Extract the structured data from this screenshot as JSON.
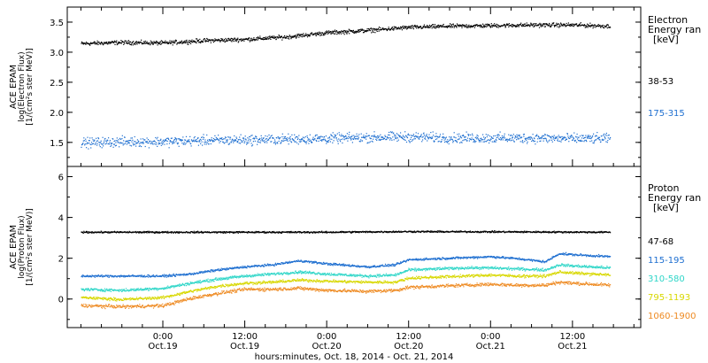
{
  "chart_data": [
    {
      "type": "scatter",
      "panel": "electron",
      "ylabel": [
        "ACE EPAM",
        "log(Electron Flux)",
        "[1/(cm²s ster MeV)]"
      ],
      "yticks": [
        1.5,
        2.0,
        2.5,
        3.0,
        3.5
      ],
      "ytick_labels": [
        "1.5",
        "2.0",
        "2.5",
        "3.0",
        "3.5"
      ],
      "ylim": [
        1.1,
        3.75
      ],
      "xlim_hours": [
        -14,
        70
      ],
      "legend_title": [
        "Electron",
        "Energy ran",
        "[keV]"
      ],
      "series": [
        {
          "name": "38-53",
          "color": "#000000",
          "x_hours": [
            -12,
            -6,
            0,
            6,
            12,
            18,
            24,
            30,
            36,
            42,
            48,
            54,
            60,
            65.5
          ],
          "values": [
            3.15,
            3.17,
            3.16,
            3.2,
            3.22,
            3.26,
            3.33,
            3.37,
            3.42,
            3.44,
            3.45,
            3.46,
            3.46,
            3.44
          ],
          "noise": 0.05
        },
        {
          "name": "175-315",
          "color": "#1e6fd0",
          "x_hours": [
            -12,
            -6,
            0,
            6,
            12,
            18,
            24,
            30,
            36,
            42,
            48,
            54,
            60,
            65.5
          ],
          "values": [
            1.5,
            1.52,
            1.52,
            1.54,
            1.55,
            1.56,
            1.57,
            1.59,
            1.6,
            1.58,
            1.58,
            1.58,
            1.57,
            1.57
          ],
          "noise": 0.12
        }
      ]
    },
    {
      "type": "scatter",
      "panel": "proton",
      "ylabel": [
        "ACE EPAM",
        "log(Proton Flux)",
        "[1/(cm²s ster MeV)]"
      ],
      "yticks": [
        0,
        2,
        4,
        6
      ],
      "ytick_labels": [
        "0",
        "2",
        "4",
        "6"
      ],
      "ylim": [
        -1.4,
        6.5
      ],
      "xlim_hours": [
        -14,
        70
      ],
      "legend_title": [
        "Proton",
        "Energy ran",
        "[keV]"
      ],
      "series": [
        {
          "name": "47-68",
          "color": "#000000",
          "x_hours": [
            -12,
            0,
            12,
            24,
            36,
            48,
            65.5
          ],
          "values": [
            3.3,
            3.3,
            3.3,
            3.3,
            3.33,
            3.32,
            3.3
          ],
          "noise": 0.06
        },
        {
          "name": "115-195",
          "color": "#1e6fd0",
          "x_hours": [
            -12,
            -6,
            0,
            4,
            8,
            12,
            16,
            20,
            24,
            30,
            34,
            36,
            40,
            44,
            48,
            52,
            56,
            58,
            60,
            65.5
          ],
          "values": [
            1.15,
            1.15,
            1.15,
            1.25,
            1.45,
            1.6,
            1.7,
            1.9,
            1.75,
            1.6,
            1.7,
            1.95,
            2.0,
            2.05,
            2.1,
            2.0,
            1.85,
            2.25,
            2.2,
            2.1
          ],
          "noise": 0.08
        },
        {
          "name": "310-580",
          "color": "#2fd6c8",
          "x_hours": [
            -12,
            -6,
            0,
            4,
            8,
            12,
            16,
            20,
            24,
            30,
            34,
            36,
            40,
            44,
            48,
            52,
            56,
            58,
            60,
            65.5
          ],
          "values": [
            0.5,
            0.45,
            0.55,
            0.8,
            1.0,
            1.15,
            1.25,
            1.35,
            1.25,
            1.15,
            1.2,
            1.45,
            1.5,
            1.55,
            1.55,
            1.5,
            1.45,
            1.7,
            1.65,
            1.55
          ],
          "noise": 0.1
        },
        {
          "name": "795-1193",
          "color": "#d8d800",
          "x_hours": [
            -12,
            -6,
            0,
            4,
            8,
            12,
            16,
            20,
            24,
            30,
            34,
            36,
            40,
            44,
            48,
            52,
            56,
            58,
            60,
            65.5
          ],
          "values": [
            0.1,
            0.0,
            0.1,
            0.4,
            0.65,
            0.8,
            0.85,
            0.95,
            0.9,
            0.85,
            0.85,
            1.05,
            1.1,
            1.15,
            1.2,
            1.15,
            1.15,
            1.35,
            1.3,
            1.2
          ],
          "noise": 0.1
        },
        {
          "name": "1060-1900",
          "color": "#ee8a22",
          "x_hours": [
            -12,
            -6,
            0,
            4,
            8,
            12,
            16,
            20,
            24,
            30,
            34,
            36,
            40,
            44,
            48,
            52,
            56,
            58,
            60,
            65.5
          ],
          "values": [
            -0.3,
            -0.35,
            -0.3,
            0.05,
            0.3,
            0.5,
            0.5,
            0.55,
            0.45,
            0.4,
            0.45,
            0.6,
            0.65,
            0.7,
            0.75,
            0.7,
            0.7,
            0.85,
            0.8,
            0.7
          ],
          "noise": 0.12
        }
      ]
    }
  ],
  "x_axis": {
    "ticks_hours": [
      0,
      12,
      24,
      36,
      48,
      60
    ],
    "tick_time_labels": [
      "0:00",
      "12:00",
      "0:00",
      "12:00",
      "0:00",
      "12:00"
    ],
    "tick_date_labels": [
      "Oct.19",
      "Oct.19",
      "Oct.20",
      "Oct.20",
      "Oct.21",
      "Oct.21"
    ],
    "minor_every_hours": 3,
    "xlabel": "hours:minutes, Oct. 18, 2014 - Oct. 21, 2014"
  }
}
